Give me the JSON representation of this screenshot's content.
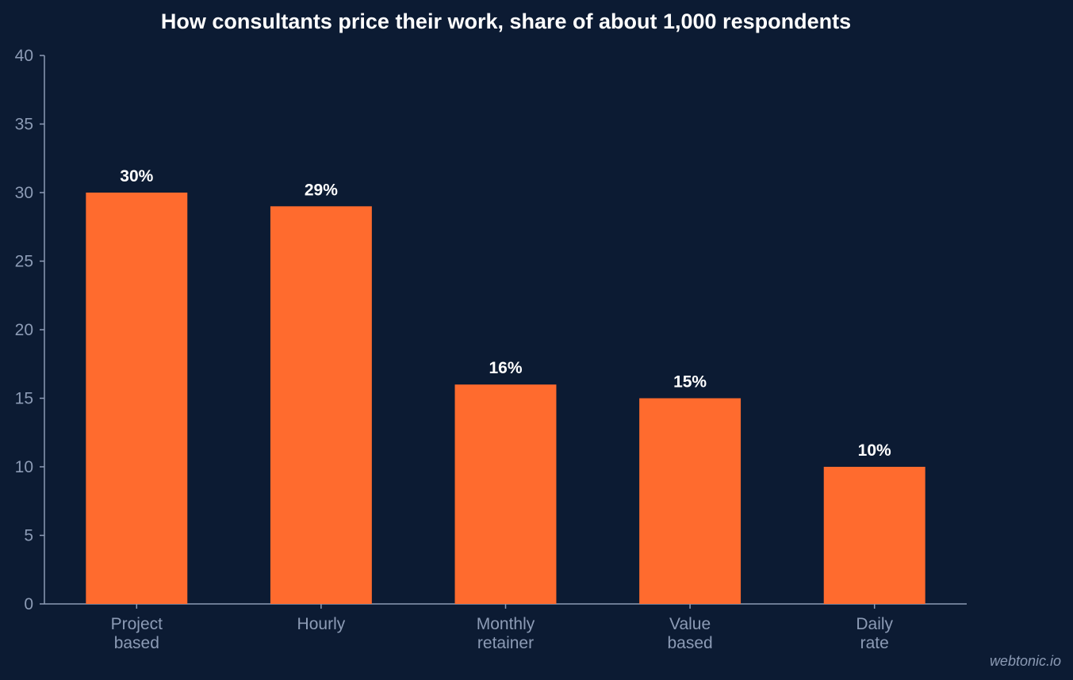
{
  "chart_data": {
    "type": "bar",
    "title": "How consultants price their work, share of about 1,000 respondents",
    "xlabel": "",
    "ylabel": "",
    "categories": [
      [
        "Project",
        "based"
      ],
      [
        "Hourly"
      ],
      [
        "Monthly",
        "retainer"
      ],
      [
        "Value",
        "based"
      ],
      [
        "Daily",
        "rate"
      ]
    ],
    "values": [
      30,
      29,
      16,
      15,
      10
    ],
    "data_labels": [
      "30%",
      "29%",
      "16%",
      "15%",
      "10%"
    ],
    "ylim": [
      0,
      40
    ],
    "yticks": [
      "0",
      "5",
      "10",
      "15",
      "20",
      "25",
      "30",
      "35",
      "40"
    ],
    "grid": false,
    "legend": "none"
  },
  "colors": {
    "background": "#0c1b33",
    "bar": "#ff6b2e",
    "axis": "#8c9bb5",
    "text": "#ffffff"
  },
  "credit": "webtonic.io"
}
